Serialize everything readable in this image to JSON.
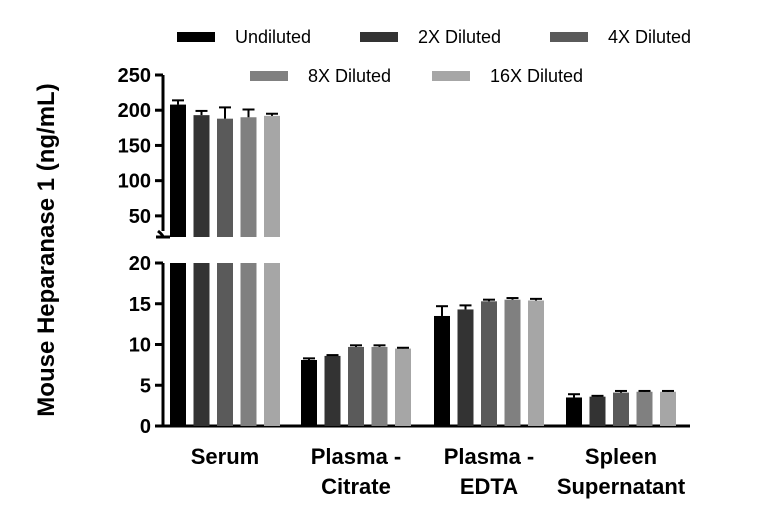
{
  "chart_data": {
    "type": "bar",
    "title": "",
    "xlabel": "",
    "ylabel": "Mouse Heparanase 1 (ng/mL)",
    "categories": [
      {
        "line1": "Serum",
        "line2": ""
      },
      {
        "line1": "Plasma -",
        "line2": "Citrate"
      },
      {
        "line1": "Plasma -",
        "line2": "EDTA"
      },
      {
        "line1": "Spleen",
        "line2": "Supernatant"
      }
    ],
    "series": [
      {
        "name": "Undiluted",
        "color": "#000000",
        "values": [
          208,
          8.1,
          13.5,
          3.5
        ],
        "errors": [
          6,
          0.2,
          1.2,
          0.4
        ]
      },
      {
        "name": "2X Diluted",
        "color": "#333333",
        "values": [
          193,
          8.6,
          14.3,
          3.6
        ],
        "errors": [
          6,
          0.1,
          0.5,
          0.1
        ]
      },
      {
        "name": "4X Diluted",
        "color": "#5a5a5a",
        "values": [
          188,
          9.7,
          15.3,
          4.1
        ],
        "errors": [
          16,
          0.2,
          0.2,
          0.2
        ]
      },
      {
        "name": "8X Diluted",
        "color": "#808080",
        "values": [
          190,
          9.7,
          15.5,
          4.2
        ],
        "errors": [
          11,
          0.2,
          0.2,
          0.1
        ]
      },
      {
        "name": "16X Diluted",
        "color": "#a6a6a6",
        "values": [
          192,
          9.5,
          15.4,
          4.2
        ],
        "errors": [
          3,
          0.1,
          0.2,
          0.1
        ]
      }
    ],
    "axis_segments": [
      {
        "name": "upper",
        "ylim": [
          20,
          250
        ],
        "ticks": [
          50,
          100,
          150,
          200,
          250
        ]
      },
      {
        "name": "lower",
        "ylim": [
          0,
          20
        ],
        "ticks": [
          0,
          5,
          10,
          15,
          20
        ]
      }
    ],
    "y_axis_break": true,
    "legend_position": "top",
    "grid": false,
    "error_bars": true
  }
}
